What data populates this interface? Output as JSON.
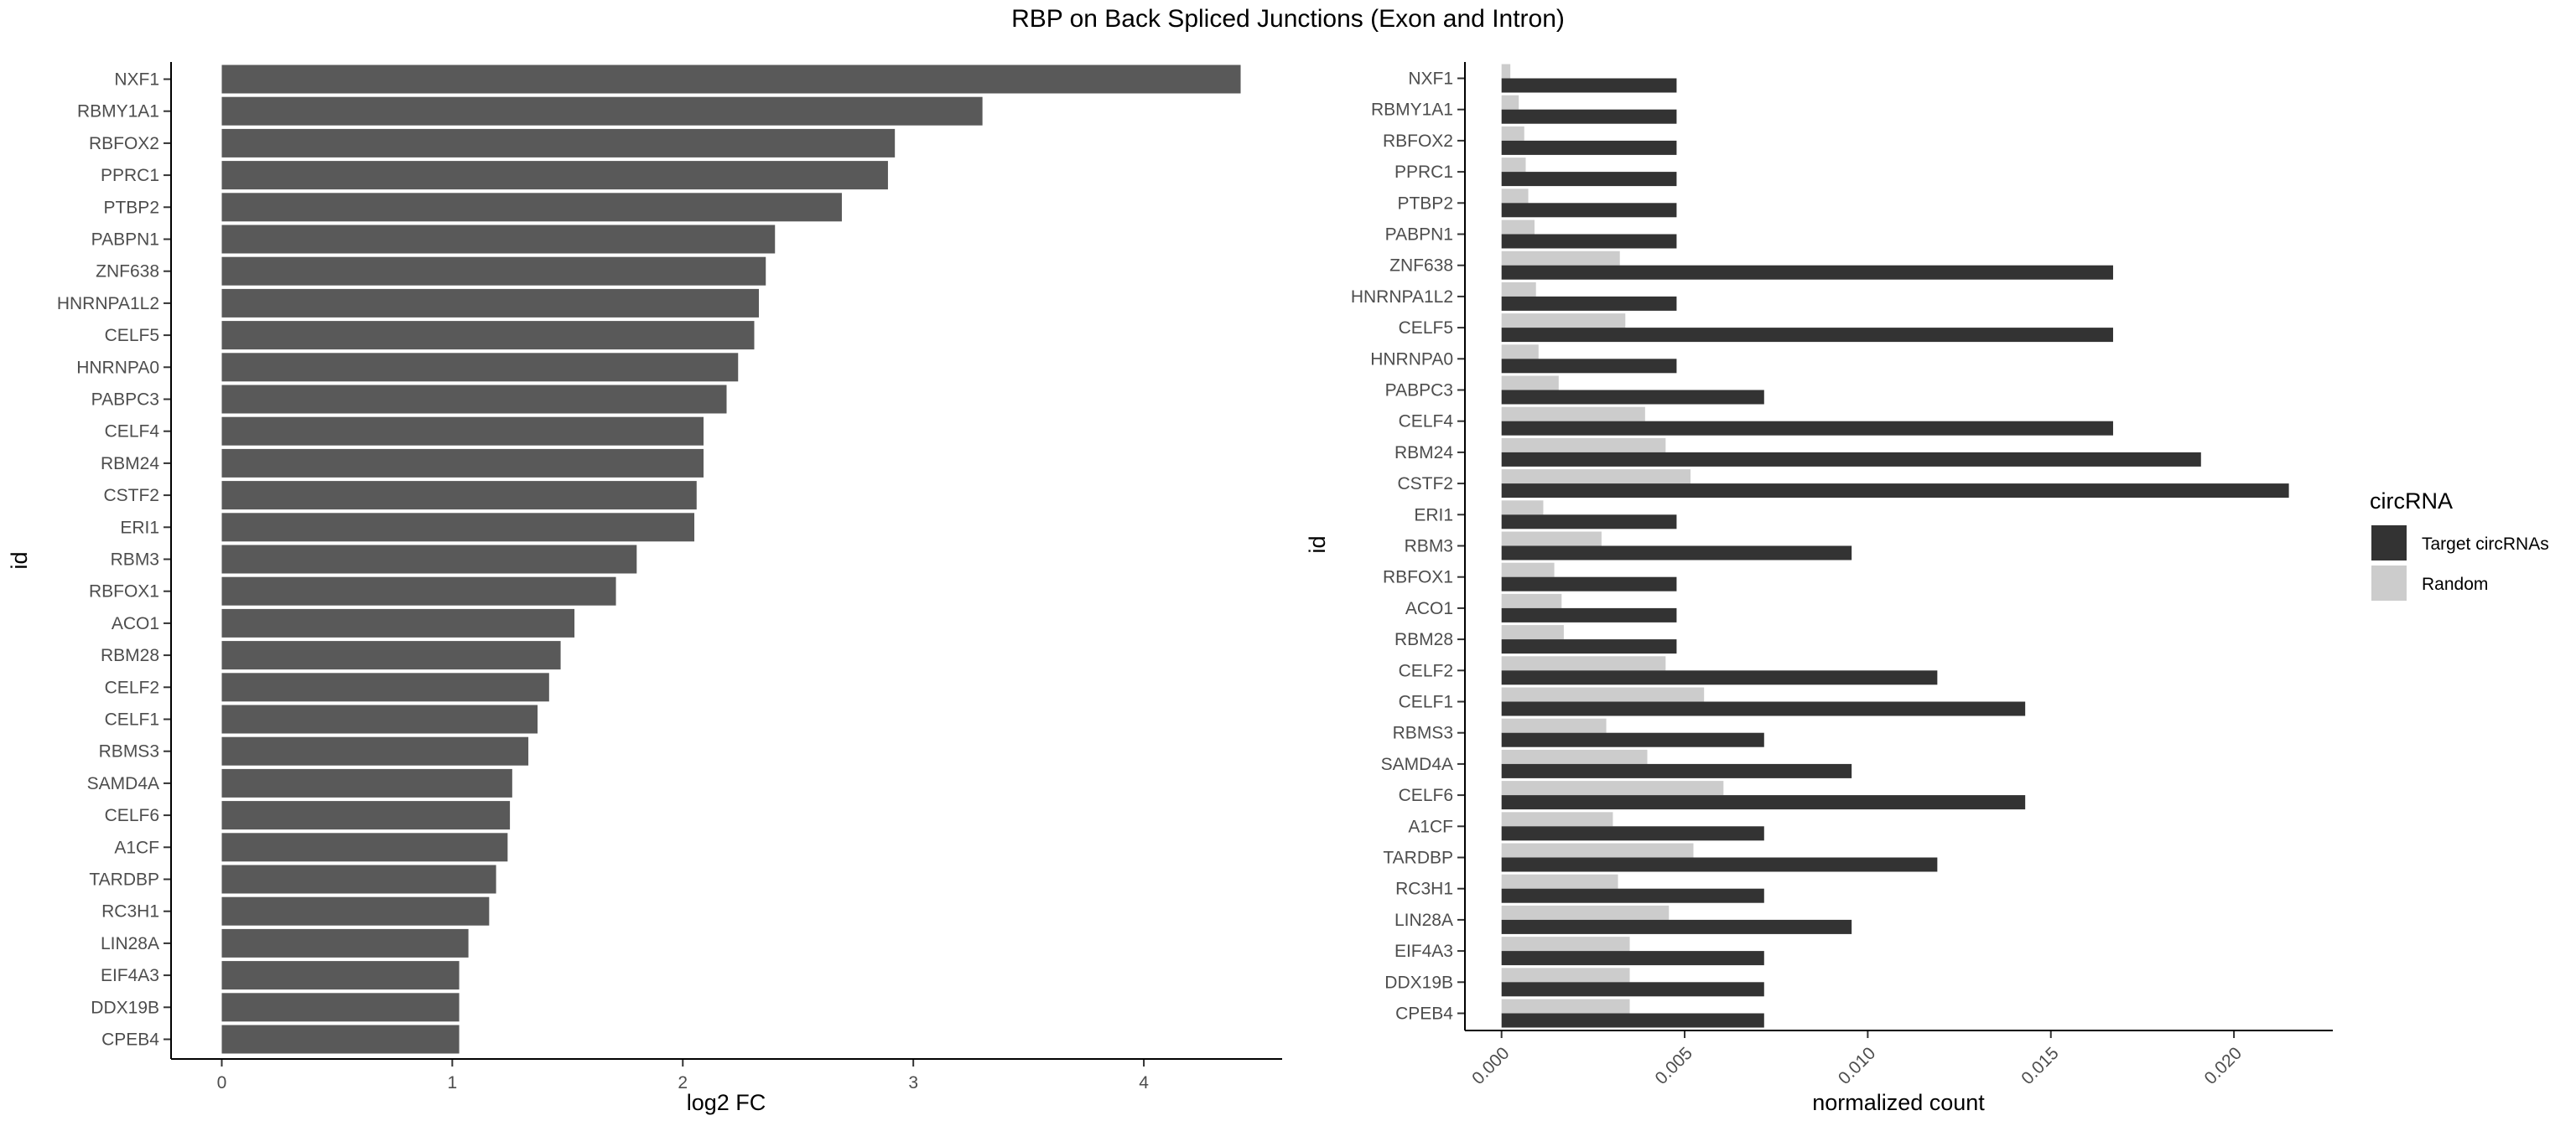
{
  "title": "RBP on Back Spliced Junctions (Exon and Intron)",
  "chart_data": [
    {
      "type": "bar",
      "orientation": "horizontal",
      "xlabel": "log2 FC",
      "ylabel": "id",
      "xlim": [
        -0.22,
        4.6
      ],
      "xticks": [
        0,
        1,
        2,
        3,
        4
      ],
      "grid": false,
      "color": "#595959",
      "categories": [
        "NXF1",
        "RBMY1A1",
        "RBFOX2",
        "PPRC1",
        "PTBP2",
        "PABPN1",
        "ZNF638",
        "HNRNPA1L2",
        "CELF5",
        "HNRNPA0",
        "PABPC3",
        "CELF4",
        "RBM24",
        "CSTF2",
        "ERI1",
        "RBM3",
        "RBFOX1",
        "ACO1",
        "RBM28",
        "CELF2",
        "CELF1",
        "RBMS3",
        "SAMD4A",
        "CELF6",
        "A1CF",
        "TARDBP",
        "RC3H1",
        "LIN28A",
        "EIF4A3",
        "DDX19B",
        "CPEB4"
      ],
      "values": [
        4.42,
        3.3,
        2.92,
        2.89,
        2.69,
        2.4,
        2.36,
        2.33,
        2.31,
        2.24,
        2.19,
        2.09,
        2.09,
        2.06,
        2.05,
        1.8,
        1.71,
        1.53,
        1.47,
        1.42,
        1.37,
        1.33,
        1.26,
        1.25,
        1.24,
        1.19,
        1.16,
        1.07,
        1.03,
        1.03,
        1.03
      ]
    },
    {
      "type": "bar",
      "orientation": "horizontal",
      "grouped": true,
      "xlabel": "normalized count",
      "ylabel": "id",
      "xlim": [
        -0.001,
        0.0227
      ],
      "xticks": [
        0.0,
        0.005,
        0.01,
        0.015,
        0.02
      ],
      "xtick_labels": [
        "0.000",
        "0.005",
        "0.010",
        "0.015",
        "0.020"
      ],
      "xtick_rotation": -45,
      "grid": false,
      "legend": {
        "title": "circRNA",
        "position": "right"
      },
      "categories": [
        "NXF1",
        "RBMY1A1",
        "RBFOX2",
        "PPRC1",
        "PTBP2",
        "PABPN1",
        "ZNF638",
        "HNRNPA1L2",
        "CELF5",
        "HNRNPA0",
        "PABPC3",
        "CELF4",
        "RBM24",
        "CSTF2",
        "ERI1",
        "RBM3",
        "RBFOX1",
        "ACO1",
        "RBM28",
        "CELF2",
        "CELF1",
        "RBMS3",
        "SAMD4A",
        "CELF6",
        "A1CF",
        "TARDBP",
        "RC3H1",
        "LIN28A",
        "EIF4A3",
        "DDX19B",
        "CPEB4"
      ],
      "series": [
        {
          "name": "Target circRNAs",
          "color": "#333333",
          "values": [
            0.00478,
            0.00478,
            0.00478,
            0.00478,
            0.00478,
            0.00478,
            0.0167,
            0.00478,
            0.0167,
            0.00478,
            0.00717,
            0.0167,
            0.0191,
            0.0215,
            0.00478,
            0.00956,
            0.00478,
            0.00478,
            0.00478,
            0.0119,
            0.0143,
            0.00717,
            0.00956,
            0.0143,
            0.00717,
            0.0119,
            0.00717,
            0.00956,
            0.00717,
            0.00717,
            0.00717
          ]
        },
        {
          "name": "Random",
          "color": "#cccccc",
          "values": [
            0.00024,
            0.00047,
            0.00062,
            0.00066,
            0.00073,
            0.0009,
            0.00323,
            0.00094,
            0.00338,
            0.00101,
            0.00156,
            0.00392,
            0.00448,
            0.00516,
            0.00114,
            0.00273,
            0.00144,
            0.00164,
            0.0017,
            0.00448,
            0.00553,
            0.00286,
            0.00398,
            0.00606,
            0.00304,
            0.00524,
            0.00318,
            0.00457,
            0.0035,
            0.0035,
            0.0035
          ]
        }
      ]
    }
  ]
}
